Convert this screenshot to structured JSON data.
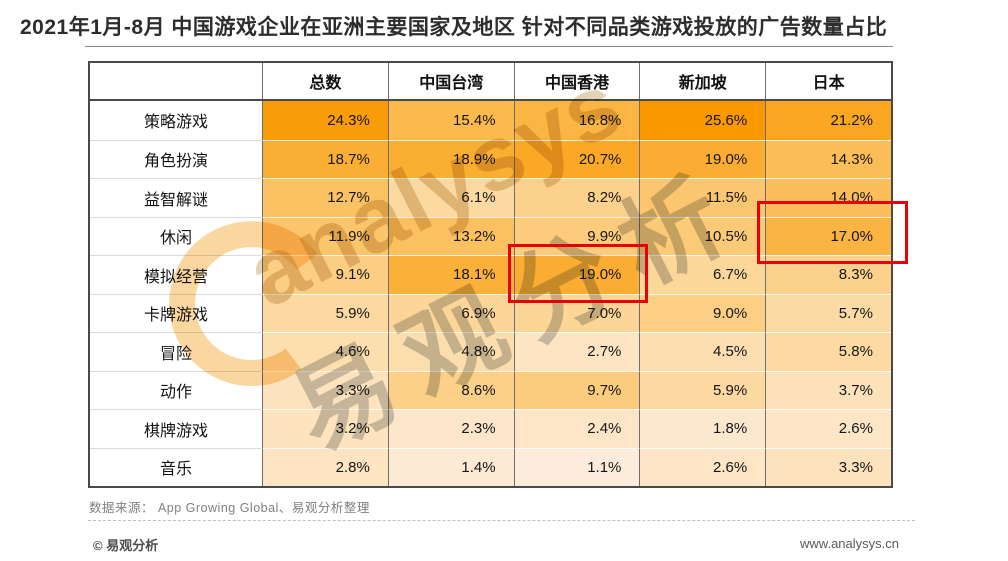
{
  "title": "2021年1月-8月 中国游戏企业在亚洲主要国家及地区 针对不同品类游戏投放的广告数量占比",
  "chart_data": {
    "type": "heatmap",
    "title": "2021年1月-8月 中国游戏企业在亚洲主要国家及地区 针对不同品类游戏投放的广告数量占比",
    "unit": "%",
    "columns": [
      "总数",
      "中国台湾",
      "中国香港",
      "新加坡",
      "日本"
    ],
    "categories": [
      "策略游戏",
      "角色扮演",
      "益智解谜",
      "休闲",
      "模拟经营",
      "卡牌游戏",
      "冒险",
      "动作",
      "棋牌游戏",
      "音乐"
    ],
    "series": [
      {
        "name": "总数",
        "values": [
          24.3,
          18.7,
          12.7,
          11.9,
          9.1,
          5.9,
          4.6,
          3.3,
          3.2,
          2.8
        ]
      },
      {
        "name": "中国台湾",
        "values": [
          15.4,
          18.9,
          6.1,
          13.2,
          18.1,
          6.9,
          4.8,
          8.6,
          2.3,
          1.4
        ]
      },
      {
        "name": "中国香港",
        "values": [
          16.8,
          20.7,
          8.2,
          9.9,
          19.0,
          7.0,
          2.7,
          9.7,
          2.4,
          1.1
        ]
      },
      {
        "name": "新加坡",
        "values": [
          25.6,
          19.0,
          11.5,
          10.5,
          6.7,
          9.0,
          4.5,
          5.9,
          1.8,
          2.6
        ]
      },
      {
        "name": "日本",
        "values": [
          21.2,
          14.3,
          14.0,
          17.0,
          8.3,
          5.7,
          5.8,
          3.7,
          2.6,
          3.3
        ]
      }
    ],
    "color_scale": {
      "min_value": 1.1,
      "max_value": 25.6,
      "min_color": "#FDEBDB",
      "max_color": "#F99800"
    },
    "highlights": [
      {
        "category": "模拟经营",
        "column": "中国香港",
        "value": "19.0%"
      },
      {
        "category": "休闲",
        "column": "日本",
        "value": "17.0%"
      }
    ],
    "legend_position": "none",
    "grid": true
  },
  "watermark": {
    "latin": "analysys",
    "cjk": "易观分析"
  },
  "footer": {
    "source": "数据来源： App Growing Global、易观分析整理",
    "copyright": "© 易观分析",
    "website": "www.analysys.cn"
  },
  "colors": {
    "highlight_box": "#E8000D",
    "title_text": "#2D2D2D"
  }
}
